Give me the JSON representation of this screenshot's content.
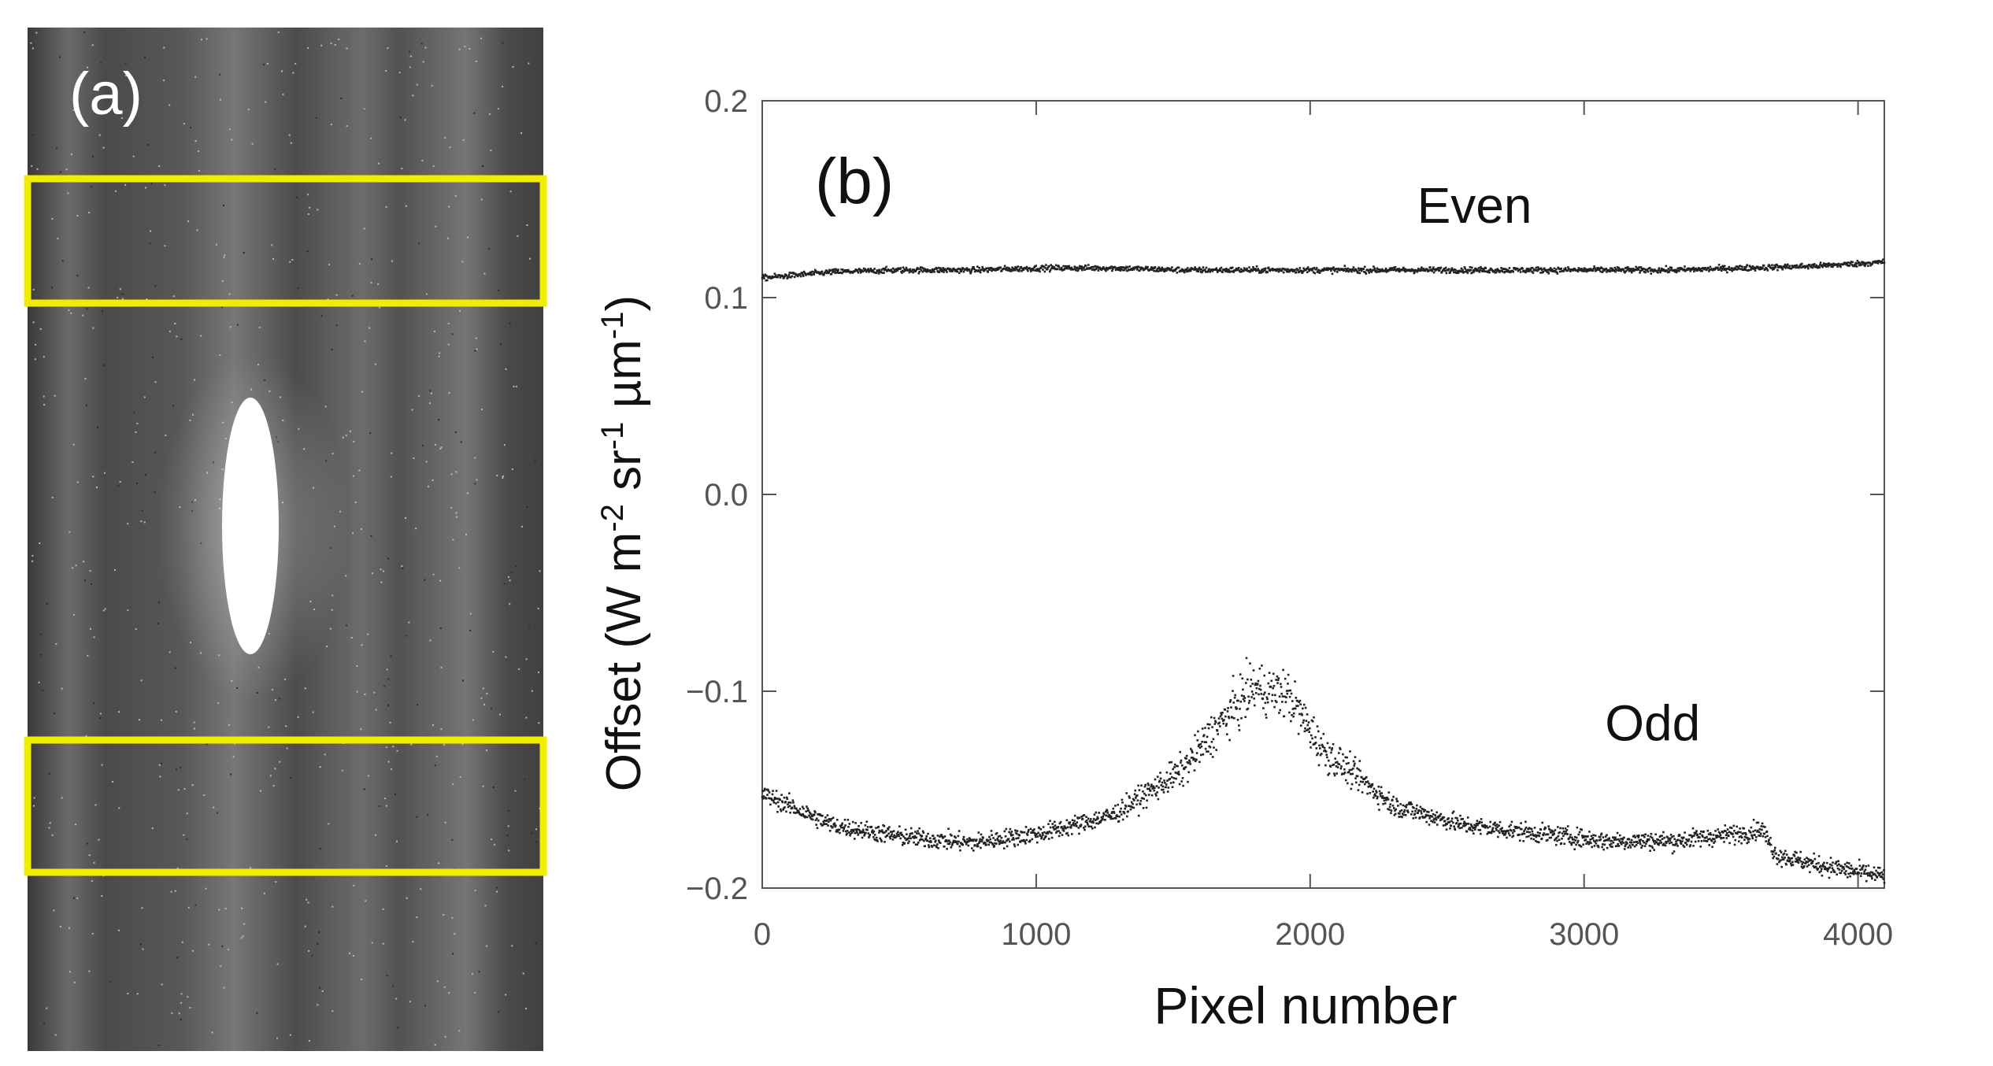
{
  "panel_a": {
    "label": "(a)",
    "highlight_color": "#f2ec00",
    "background_color": "#555555",
    "spot_color": "#ffffff"
  },
  "chart_data": {
    "type": "scatter",
    "panel_label": "(b)",
    "title": "",
    "xlabel": "Pixel number",
    "ylabel": "Offset (W m-2 sr-1 µm-1)",
    "ylabel_parts": {
      "open": "Offset (W m",
      "exp1": "-2",
      "sr": " sr",
      "exp2": "-1",
      "um": " µm",
      "exp3": "-1",
      "close": ")"
    },
    "xlim": [
      0,
      4096
    ],
    "ylim": [
      -0.2,
      0.2
    ],
    "xticks": [
      0,
      1000,
      2000,
      3000,
      4000
    ],
    "xtick_labels": [
      "0",
      "1000",
      "2000",
      "3000",
      "4000"
    ],
    "yticks": [
      -0.2,
      -0.1,
      0.0,
      0.1,
      0.2
    ],
    "ytick_labels": [
      "−0.2",
      "−0.1",
      "0.0",
      "0.1",
      "0.2"
    ],
    "grid": false,
    "point_color": "#222222",
    "series": [
      {
        "name": "Even",
        "label_anchor": [
          2600,
          0.138
        ],
        "x": [
          0,
          256,
          512,
          768,
          1024,
          1280,
          1536,
          1792,
          2048,
          2304,
          2560,
          2816,
          3072,
          3328,
          3584,
          3840,
          4096
        ],
        "values": [
          0.11,
          0.113,
          0.114,
          0.114,
          0.115,
          0.115,
          0.114,
          0.114,
          0.114,
          0.114,
          0.114,
          0.114,
          0.114,
          0.114,
          0.115,
          0.116,
          0.118
        ]
      },
      {
        "name": "Odd",
        "label_anchor": [
          3250,
          -0.125
        ],
        "x": [
          0,
          256,
          512,
          768,
          1024,
          1280,
          1536,
          1664,
          1792,
          1920,
          2048,
          2304,
          2560,
          2816,
          3072,
          3328,
          3584,
          3650,
          3700,
          3840,
          4096
        ],
        "values": [
          -0.152,
          -0.168,
          -0.174,
          -0.177,
          -0.172,
          -0.163,
          -0.14,
          -0.118,
          -0.098,
          -0.102,
          -0.13,
          -0.158,
          -0.168,
          -0.172,
          -0.176,
          -0.176,
          -0.172,
          -0.17,
          -0.183,
          -0.188,
          -0.194
        ]
      }
    ]
  }
}
